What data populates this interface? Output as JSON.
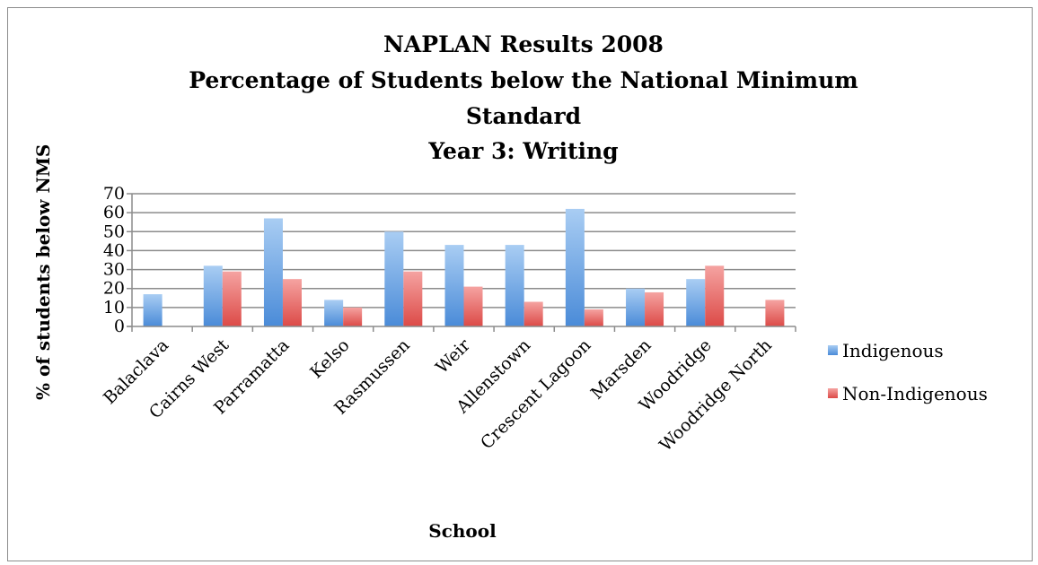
{
  "chart_data": {
    "type": "bar",
    "title_lines": [
      "NAPLAN Results 2008",
      "Percentage of Students below the National Minimum",
      "Standard",
      "Year 3: Writing"
    ],
    "xlabel": "School",
    "ylabel": "% of students below NMS",
    "ylim": [
      0,
      70
    ],
    "yticks": [
      0,
      10,
      20,
      30,
      40,
      50,
      60,
      70
    ],
    "grid": true,
    "legend_position": "right",
    "categories": [
      "Balaclava",
      "Cairns West",
      "Parramatta",
      "Kelso",
      "Rasmussen",
      "Weir",
      "Allenstown",
      "Crescent Lagoon",
      "Marsden",
      "Woodridge",
      "Woodridge North"
    ],
    "series": [
      {
        "name": "Indigenous",
        "color": "#5b9bd5",
        "values": [
          17,
          32,
          57,
          14,
          50,
          43,
          43,
          62,
          20,
          25,
          null
        ]
      },
      {
        "name": "Non-Indigenous",
        "color": "#e0534f",
        "values": [
          null,
          29,
          25,
          10,
          29,
          21,
          13,
          9,
          18,
          32,
          14
        ]
      }
    ]
  }
}
